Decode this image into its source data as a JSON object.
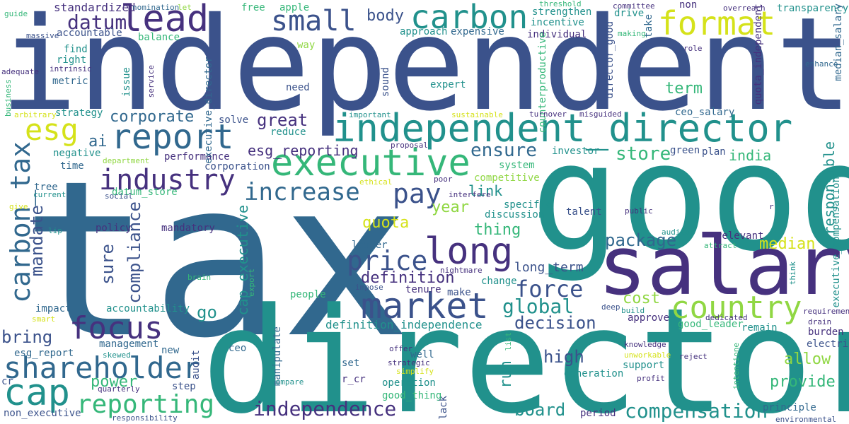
{
  "palette": {
    "dark_purple": "#46317e",
    "indigo": "#3b528b",
    "blue": "#31688e",
    "teal": "#21918c",
    "green": "#35b779",
    "lime": "#90d743",
    "yellow": "#d5e21a"
  },
  "words": [
    {
      "text": "independent",
      "color": "#3b528b"
    },
    {
      "text": "tax",
      "color": "#31688e"
    },
    {
      "text": "good",
      "color": "#21918c"
    },
    {
      "text": "director",
      "color": "#21918c"
    },
    {
      "text": "salary",
      "color": "#46317e"
    },
    {
      "text": "independent_director",
      "color": "#21918c"
    },
    {
      "text": "executive",
      "color": "#35b779"
    },
    {
      "text": "carbon",
      "color": "#21918c"
    },
    {
      "text": "report",
      "color": "#31688e"
    },
    {
      "text": "market",
      "color": "#3b528b"
    },
    {
      "text": "long",
      "color": "#46317e"
    },
    {
      "text": "shareholder",
      "color": "#31688e"
    },
    {
      "text": "focus",
      "color": "#46317e"
    },
    {
      "text": "cap",
      "color": "#21918c"
    },
    {
      "text": "country",
      "color": "#90d743"
    },
    {
      "text": "lead",
      "color": "#46317e"
    },
    {
      "text": "format",
      "color": "#d5e21a"
    },
    {
      "text": "small",
      "color": "#3b528b"
    },
    {
      "text": "esg",
      "color": "#d5e21a"
    },
    {
      "text": "industry",
      "color": "#46317e"
    },
    {
      "text": "increase",
      "color": "#31688e"
    },
    {
      "text": "pay",
      "color": "#3b528b"
    },
    {
      "text": "carbon_tax",
      "color": "#31688e"
    },
    {
      "text": "price",
      "color": "#3b528b"
    },
    {
      "text": "force",
      "color": "#3b528b"
    },
    {
      "text": "global",
      "color": "#21918c"
    },
    {
      "text": "reporting",
      "color": "#35b779"
    },
    {
      "text": "independence",
      "color": "#46317e"
    },
    {
      "text": "compensation",
      "color": "#21918c"
    },
    {
      "text": "board",
      "color": "#21918c"
    },
    {
      "text": "datum",
      "color": "#46317e"
    },
    {
      "text": "body",
      "color": "#3b528b"
    },
    {
      "text": "corporate",
      "color": "#31688e"
    },
    {
      "text": "great",
      "color": "#46317e"
    },
    {
      "text": "ai",
      "color": "#31688e"
    },
    {
      "text": "ensure",
      "color": "#31688e"
    },
    {
      "text": "store",
      "color": "#35b779"
    },
    {
      "text": "india",
      "color": "#35b779"
    },
    {
      "text": "responsible",
      "color": "#21918c"
    },
    {
      "text": "term",
      "color": "#35b779"
    },
    {
      "text": "quota",
      "color": "#d5e21a"
    },
    {
      "text": "thing",
      "color": "#35b779"
    },
    {
      "text": "link",
      "color": "#21918c"
    },
    {
      "text": "year",
      "color": "#90d743"
    },
    {
      "text": "package",
      "color": "#31688e"
    },
    {
      "text": "median",
      "color": "#d5e21a"
    },
    {
      "text": "definition",
      "color": "#46317e"
    },
    {
      "text": "compliance",
      "color": "#3b528b"
    },
    {
      "text": "sure",
      "color": "#3b528b"
    },
    {
      "text": "mandate",
      "color": "#3b528b"
    },
    {
      "text": "cost",
      "color": "#90d743"
    },
    {
      "text": "decision",
      "color": "#3b528b"
    },
    {
      "text": "high",
      "color": "#3b528b"
    },
    {
      "text": "allow",
      "color": "#90d743"
    },
    {
      "text": "provide",
      "color": "#35b779"
    },
    {
      "text": "bring",
      "color": "#3b528b"
    },
    {
      "text": "power",
      "color": "#35b779"
    },
    {
      "text": "go",
      "color": "#21918c"
    },
    {
      "text": "run",
      "color": "#21918c"
    },
    {
      "text": "esg_reporting",
      "color": "#46317e"
    },
    {
      "text": "long_term",
      "color": "#3b528b"
    },
    {
      "text": "cap_executive",
      "color": "#21918c"
    },
    {
      "text": "definition_independence",
      "color": "#21918c"
    },
    {
      "text": "standardized",
      "color": "#46317e"
    },
    {
      "text": "accountable",
      "color": "#3b528b"
    },
    {
      "text": "find",
      "color": "#21918c"
    },
    {
      "text": "right",
      "color": "#21918c"
    },
    {
      "text": "metric",
      "color": "#31688e"
    },
    {
      "text": "strategy",
      "color": "#21918c"
    },
    {
      "text": "negative",
      "color": "#21918c"
    },
    {
      "text": "time",
      "color": "#31688e"
    },
    {
      "text": "tree",
      "color": "#31688e"
    },
    {
      "text": "datum_store",
      "color": "#35b779"
    },
    {
      "text": "policy",
      "color": "#46317e"
    },
    {
      "text": "mandatory",
      "color": "#46317e"
    },
    {
      "text": "impact",
      "color": "#31688e"
    },
    {
      "text": "accountability",
      "color": "#21918c"
    },
    {
      "text": "management",
      "color": "#31688e"
    },
    {
      "text": "esg_report",
      "color": "#31688e"
    },
    {
      "text": "new",
      "color": "#31688e"
    },
    {
      "text": "step",
      "color": "#3b528b"
    },
    {
      "text": "non_executive",
      "color": "#3b528b"
    },
    {
      "text": "cr",
      "color": "#3b528b"
    },
    {
      "text": "ceo",
      "color": "#31688e"
    },
    {
      "text": "audit",
      "color": "#3b528b"
    },
    {
      "text": "people",
      "color": "#35b779"
    },
    {
      "text": "performance",
      "color": "#46317e"
    },
    {
      "text": "corporation",
      "color": "#3b528b"
    },
    {
      "text": "solve",
      "color": "#3b528b"
    },
    {
      "text": "reduce",
      "color": "#21918c"
    },
    {
      "text": "balance",
      "color": "#35b779"
    },
    {
      "text": "free",
      "color": "#35b779"
    },
    {
      "text": "apple",
      "color": "#35b779"
    },
    {
      "text": "way",
      "color": "#90d743"
    },
    {
      "text": "issue",
      "color": "#21918c"
    },
    {
      "text": "need",
      "color": "#3b528b"
    },
    {
      "text": "sound",
      "color": "#3b528b"
    },
    {
      "text": "approach",
      "color": "#21918c"
    },
    {
      "text": "expensive",
      "color": "#31688e"
    },
    {
      "text": "expert",
      "color": "#21918c"
    },
    {
      "text": "individual",
      "color": "#46317e"
    },
    {
      "text": "incentive",
      "color": "#21918c"
    },
    {
      "text": "strengthen",
      "color": "#21918c"
    },
    {
      "text": "drive",
      "color": "#21918c"
    },
    {
      "text": "transparency",
      "color": "#21918c"
    },
    {
      "text": "non",
      "color": "#46317e"
    },
    {
      "text": "take",
      "color": "#31688e"
    },
    {
      "text": "plan",
      "color": "#3b528b"
    },
    {
      "text": "green",
      "color": "#3b528b"
    },
    {
      "text": "investor",
      "color": "#21918c"
    },
    {
      "text": "system",
      "color": "#35b779"
    },
    {
      "text": "competitive",
      "color": "#90d743"
    },
    {
      "text": "specific",
      "color": "#21918c"
    },
    {
      "text": "discussion",
      "color": "#21918c"
    },
    {
      "text": "talent",
      "color": "#3b528b"
    },
    {
      "text": "relevant",
      "color": "#46317e"
    },
    {
      "text": "leader",
      "color": "#31688e"
    },
    {
      "text": "tenure",
      "color": "#46317e"
    },
    {
      "text": "make",
      "color": "#3b528b"
    },
    {
      "text": "change",
      "color": "#21918c"
    },
    {
      "text": "approve",
      "color": "#46317e"
    },
    {
      "text": "good_leader",
      "color": "#35b779"
    },
    {
      "text": "remain",
      "color": "#21918c"
    },
    {
      "text": "burden",
      "color": "#46317e"
    },
    {
      "text": "electricity",
      "color": "#3b528b"
    },
    {
      "text": "principle",
      "color": "#31688e"
    },
    {
      "text": "set",
      "color": "#31688e"
    },
    {
      "text": "r_cr",
      "color": "#46317e"
    },
    {
      "text": "operation",
      "color": "#21918c"
    },
    {
      "text": "good_thing",
      "color": "#35b779"
    },
    {
      "text": "lack",
      "color": "#3b528b"
    },
    {
      "text": "well",
      "color": "#31688e"
    },
    {
      "text": "generation",
      "color": "#21918c"
    },
    {
      "text": "support",
      "color": "#21918c"
    },
    {
      "text": "period",
      "color": "#46317e"
    },
    {
      "text": "executive_director",
      "color": "#31688e"
    },
    {
      "text": "director_good",
      "color": "#3b528b"
    },
    {
      "text": "quota_independent",
      "color": "#46317e"
    },
    {
      "text": "median_salary",
      "color": "#31688e"
    },
    {
      "text": "executive_compensation",
      "color": "#21918c"
    },
    {
      "text": "ceo_salary",
      "color": "#31688e"
    },
    {
      "text": "counterproductive",
      "color": "#35b779"
    },
    {
      "text": "manipulate",
      "color": "#31688e"
    },
    {
      "text": "nomination",
      "color": "#31688e"
    },
    {
      "text": "let",
      "color": "#90d743"
    },
    {
      "text": "threshold",
      "color": "#35b779"
    },
    {
      "text": "committee",
      "color": "#46317e"
    },
    {
      "text": "overreach",
      "color": "#46317e"
    },
    {
      "text": "guide",
      "color": "#35b779"
    },
    {
      "text": "massive",
      "color": "#3b528b"
    },
    {
      "text": "adequate",
      "color": "#46317e"
    },
    {
      "text": "intrinsic",
      "color": "#46317e"
    },
    {
      "text": "business",
      "color": "#35b779"
    },
    {
      "text": "arbitrary",
      "color": "#d5e21a"
    },
    {
      "text": "service",
      "color": "#46317e"
    },
    {
      "text": "important",
      "color": "#21918c"
    },
    {
      "text": "sustainable",
      "color": "#d5e21a"
    },
    {
      "text": "turnover",
      "color": "#46317e"
    },
    {
      "text": "misguided",
      "color": "#46317e"
    },
    {
      "text": "making",
      "color": "#35b779"
    },
    {
      "text": "role",
      "color": "#46317e"
    },
    {
      "text": "enhance",
      "color": "#31688e"
    },
    {
      "text": "department",
      "color": "#90d743"
    },
    {
      "text": "proposal",
      "color": "#46317e"
    },
    {
      "text": "ethical",
      "color": "#d5e21a"
    },
    {
      "text": "poor",
      "color": "#46317e"
    },
    {
      "text": "interfere",
      "color": "#46317e"
    },
    {
      "text": "current",
      "color": "#21918c"
    },
    {
      "text": "give",
      "color": "#d5e21a"
    },
    {
      "text": "social",
      "color": "#3b528b"
    },
    {
      "text": "lip",
      "color": "#21918c"
    },
    {
      "text": "public",
      "color": "#46317e"
    },
    {
      "text": "auditor",
      "color": "#21918c"
    },
    {
      "text": "attract",
      "color": "#35b779"
    },
    {
      "text": "r",
      "color": "#46317e"
    },
    {
      "text": "brain",
      "color": "#35b779"
    },
    {
      "text": "export",
      "color": "#35b779"
    },
    {
      "text": "nightmare",
      "color": "#46317e"
    },
    {
      "text": "impose",
      "color": "#3b528b"
    },
    {
      "text": "think",
      "color": "#21918c"
    },
    {
      "text": "deep",
      "color": "#3b528b"
    },
    {
      "text": "build",
      "color": "#21918c"
    },
    {
      "text": "dedicated",
      "color": "#46317e"
    },
    {
      "text": "requirement",
      "color": "#46317e"
    },
    {
      "text": "drain",
      "color": "#46317e"
    },
    {
      "text": "smart",
      "color": "#d5e21a"
    },
    {
      "text": "skewed",
      "color": "#21918c"
    },
    {
      "text": "quarterly",
      "color": "#46317e"
    },
    {
      "text": "responsibility",
      "color": "#3b528b"
    },
    {
      "text": "compare",
      "color": "#21918c"
    },
    {
      "text": "simplify",
      "color": "#d5e21a"
    },
    {
      "text": "strategic",
      "color": "#46317e"
    },
    {
      "text": "offer",
      "color": "#46317e"
    },
    {
      "text": "list",
      "color": "#35b779"
    },
    {
      "text": "knowledge",
      "color": "#46317e"
    },
    {
      "text": "unworkable",
      "color": "#d5e21a"
    },
    {
      "text": "reject",
      "color": "#46317e"
    },
    {
      "text": "intentione",
      "color": "#35b779"
    },
    {
      "text": "profit",
      "color": "#46317e"
    },
    {
      "text": "environmental",
      "color": "#3b528b"
    }
  ]
}
